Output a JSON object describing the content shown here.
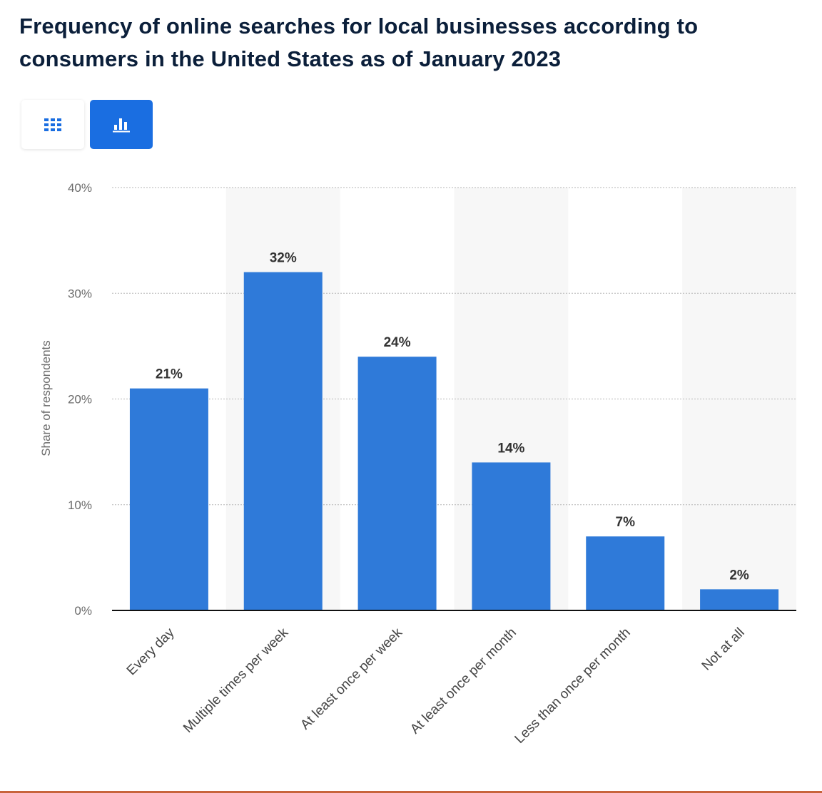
{
  "title": "Frequency of online searches for local businesses according to consumers in the United States as of January 2023",
  "view_toggle": {
    "table_icon": "table-grid-icon",
    "chart_icon": "bar-chart-icon",
    "active": "chart"
  },
  "colors": {
    "bar": "#2f7ad9",
    "accent": "#1a6ee1",
    "title": "#0b1f3a",
    "axis_text": "#6b6b6b",
    "label_text": "#333333",
    "band": "#f7f7f7"
  },
  "chart_data": {
    "type": "bar",
    "categories": [
      "Every day",
      "Multiple times per week",
      "At least once per week",
      "At least once per month",
      "Less than once per month",
      "Not at all"
    ],
    "values": [
      21,
      32,
      24,
      14,
      7,
      2
    ],
    "value_labels": [
      "21%",
      "32%",
      "24%",
      "14%",
      "7%",
      "2%"
    ],
    "ylabel": "Share of respondents",
    "xlabel": "",
    "ylim": [
      0,
      40
    ],
    "yticks": [
      0,
      10,
      20,
      30,
      40
    ],
    "ytick_labels": [
      "0%",
      "10%",
      "20%",
      "30%",
      "40%"
    ],
    "grid": true,
    "legend": "none"
  }
}
